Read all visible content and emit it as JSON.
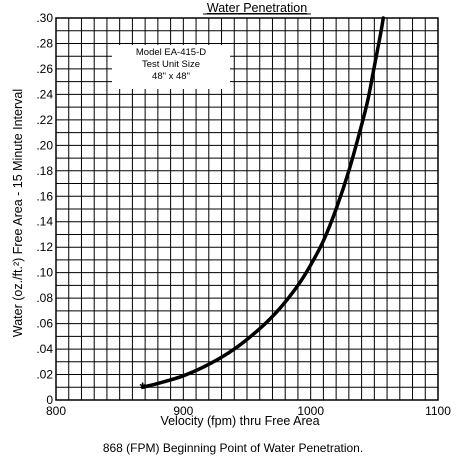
{
  "chart_data": {
    "type": "line",
    "title": "Water Penetration",
    "xlabel": "Velocity (fpm) thru Free Area",
    "ylabel": "Water (oz./ft.²) Free Area - 15 Minute Interval",
    "xlim": [
      800,
      1100
    ],
    "ylim": [
      0,
      0.3
    ],
    "x_ticks": [
      "800",
      "900",
      "1000",
      "1100"
    ],
    "y_ticks": [
      "0",
      ".02",
      ".04",
      ".06",
      ".08",
      ".10",
      ".12",
      ".14",
      ".16",
      ".18",
      ".20",
      ".22",
      ".24",
      ".26",
      ".28",
      ".30"
    ],
    "grid": true,
    "series": [
      {
        "x": [
          868,
          880,
          900,
          920,
          940,
          960,
          975,
          990,
          1000,
          1010,
          1020,
          1030,
          1040,
          1045,
          1050,
          1055,
          1057
        ],
        "y": [
          0.01,
          0.013,
          0.019,
          0.028,
          0.04,
          0.056,
          0.071,
          0.09,
          0.106,
          0.125,
          0.15,
          0.18,
          0.216,
          0.236,
          0.262,
          0.288,
          0.3
        ]
      }
    ],
    "start_marker": {
      "x": 868,
      "y": 0.01,
      "symbol": "*"
    },
    "annotation": [
      "Model EA-415-D",
      "Test Unit Size",
      "48\" x 48\""
    ],
    "caption": "868 (FPM) Beginning Point of Water Penetration."
  }
}
